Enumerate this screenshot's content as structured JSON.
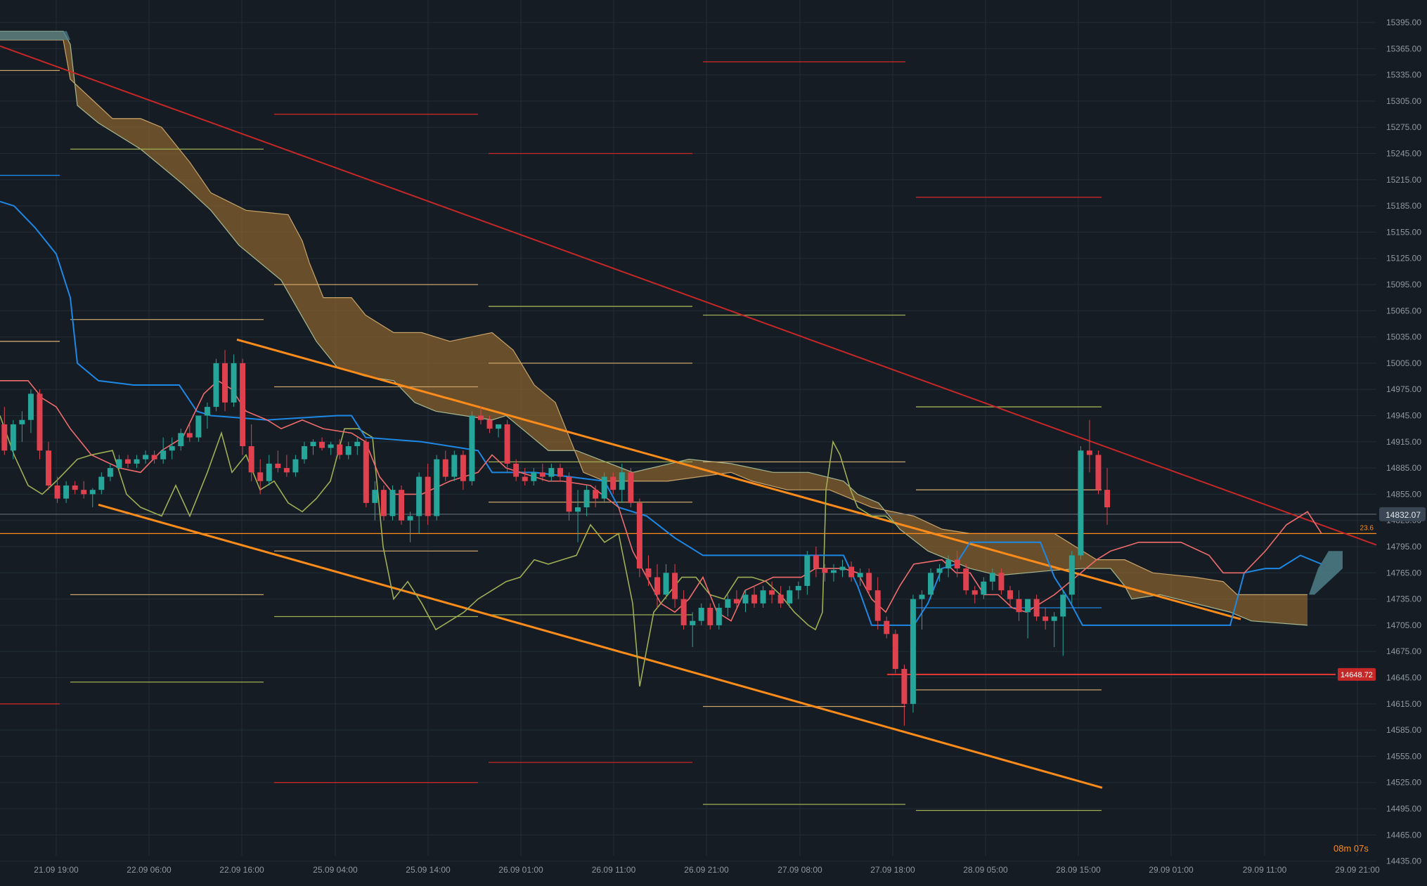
{
  "chart_data": {
    "type": "candlestick",
    "title": "",
    "xlabel": "",
    "ylabel": "",
    "ylim": [
      14422,
      15412
    ],
    "grid": true,
    "legend": "none",
    "y_ticks": [
      "15395.00",
      "15365.00",
      "15335.00",
      "15305.00",
      "15275.00",
      "15245.00",
      "15215.00",
      "15185.00",
      "15155.00",
      "15125.00",
      "15095.00",
      "15065.00",
      "15035.00",
      "15005.00",
      "14975.00",
      "14945.00",
      "14915.00",
      "14885.00",
      "14855.00",
      "14825.00",
      "14795.00",
      "14765.00",
      "14735.00",
      "14705.00",
      "14675.00",
      "14645.00",
      "14615.00",
      "14585.00",
      "14555.00",
      "14525.00",
      "14495.00",
      "14465.00",
      "14435.00"
    ],
    "x_ticks": [
      "21.09 19:00",
      "22.09 06:00",
      "22.09 16:00",
      "25.09 04:00",
      "25.09 14:00",
      "26.09 01:00",
      "26.09 11:00",
      "26.09 21:00",
      "27.09 08:00",
      "27.09 18:00",
      "28.09 05:00",
      "28.09 15:00",
      "29.09 01:00",
      "29.09 11:00",
      "29.09 21:00"
    ],
    "price_labels": {
      "current": "14832.07",
      "support": "14648.72",
      "fib": "23.6",
      "timer": "08m 07s"
    },
    "colors": {
      "background": "#151c24",
      "grid": "#222c36",
      "bull": "#26a69a",
      "bear": "#e0414f",
      "kijun": "#1e88e5",
      "tenkan": "#ef6c6c",
      "chikou": "#9fae55",
      "cloud_bear": "#9c6d30",
      "cloud_bull": "#4e7f8a",
      "trendline": "#ff8c1a",
      "resistance_line": "#c62828",
      "support_label": "#c62828",
      "current_label": "#3a4654",
      "timer": "#ff8c1a"
    },
    "candles": [
      {
        "t": 0.5,
        "o": 14935,
        "h": 14955,
        "l": 14900,
        "c": 14905
      },
      {
        "t": 1.5,
        "o": 14905,
        "h": 14940,
        "l": 14895,
        "c": 14935
      },
      {
        "t": 2.5,
        "o": 14935,
        "h": 14950,
        "l": 14915,
        "c": 14940
      },
      {
        "t": 3.5,
        "o": 14940,
        "h": 14975,
        "l": 14925,
        "c": 14970
      },
      {
        "t": 4.5,
        "o": 14970,
        "h": 14975,
        "l": 14895,
        "c": 14905
      },
      {
        "t": 5.5,
        "o": 14905,
        "h": 14915,
        "l": 14860,
        "c": 14865
      },
      {
        "t": 6.5,
        "o": 14865,
        "h": 14875,
        "l": 14845,
        "c": 14850
      },
      {
        "t": 7.5,
        "o": 14850,
        "h": 14870,
        "l": 14845,
        "c": 14865
      },
      {
        "t": 8.5,
        "o": 14865,
        "h": 14870,
        "l": 14855,
        "c": 14860
      },
      {
        "t": 9.5,
        "o": 14860,
        "h": 14870,
        "l": 14850,
        "c": 14855
      },
      {
        "t": 10.5,
        "o": 14855,
        "h": 14862,
        "l": 14840,
        "c": 14860
      },
      {
        "t": 11.5,
        "o": 14860,
        "h": 14880,
        "l": 14855,
        "c": 14875
      },
      {
        "t": 12.5,
        "o": 14875,
        "h": 14890,
        "l": 14870,
        "c": 14885
      },
      {
        "t": 13.5,
        "o": 14885,
        "h": 14900,
        "l": 14880,
        "c": 14895
      },
      {
        "t": 14.5,
        "o": 14895,
        "h": 14900,
        "l": 14885,
        "c": 14890
      },
      {
        "t": 15.5,
        "o": 14890,
        "h": 14900,
        "l": 14885,
        "c": 14895
      },
      {
        "t": 16.5,
        "o": 14895,
        "h": 14905,
        "l": 14890,
        "c": 14900
      },
      {
        "t": 17.5,
        "o": 14900,
        "h": 14905,
        "l": 14890,
        "c": 14895
      },
      {
        "t": 18.5,
        "o": 14895,
        "h": 14920,
        "l": 14890,
        "c": 14905
      },
      {
        "t": 19.5,
        "o": 14905,
        "h": 14920,
        "l": 14895,
        "c": 14910
      },
      {
        "t": 20.5,
        "o": 14910,
        "h": 14930,
        "l": 14905,
        "c": 14925
      },
      {
        "t": 21.5,
        "o": 14925,
        "h": 14935,
        "l": 14915,
        "c": 14920
      },
      {
        "t": 22.5,
        "o": 14920,
        "h": 14945,
        "l": 14915,
        "c": 14945
      },
      {
        "t": 23.5,
        "o": 14945,
        "h": 14960,
        "l": 14930,
        "c": 14955
      },
      {
        "t": 24.5,
        "o": 14955,
        "h": 15010,
        "l": 14950,
        "c": 15005
      },
      {
        "t": 25.5,
        "o": 15005,
        "h": 15020,
        "l": 14950,
        "c": 14960
      },
      {
        "t": 26.5,
        "o": 14960,
        "h": 15015,
        "l": 14955,
        "c": 15005
      },
      {
        "t": 27.5,
        "o": 15005,
        "h": 15010,
        "l": 14900,
        "c": 14910
      },
      {
        "t": 28.5,
        "o": 14910,
        "h": 14935,
        "l": 14870,
        "c": 14880
      },
      {
        "t": 29.5,
        "o": 14880,
        "h": 14895,
        "l": 14855,
        "c": 14870
      },
      {
        "t": 30.5,
        "o": 14870,
        "h": 14900,
        "l": 14865,
        "c": 14890
      },
      {
        "t": 31.5,
        "o": 14890,
        "h": 14905,
        "l": 14880,
        "c": 14885
      },
      {
        "t": 32.5,
        "o": 14885,
        "h": 14900,
        "l": 14875,
        "c": 14880
      },
      {
        "t": 33.5,
        "o": 14880,
        "h": 14900,
        "l": 14875,
        "c": 14895
      },
      {
        "t": 34.5,
        "o": 14895,
        "h": 14915,
        "l": 14890,
        "c": 14910
      },
      {
        "t": 35.5,
        "o": 14910,
        "h": 14918,
        "l": 14900,
        "c": 14915
      },
      {
        "t": 36.5,
        "o": 14915,
        "h": 14920,
        "l": 14905,
        "c": 14908
      },
      {
        "t": 37.5,
        "o": 14908,
        "h": 14915,
        "l": 14900,
        "c": 14912
      },
      {
        "t": 38.5,
        "o": 14912,
        "h": 14918,
        "l": 14895,
        "c": 14900
      },
      {
        "t": 39.5,
        "o": 14900,
        "h": 14915,
        "l": 14895,
        "c": 14910
      },
      {
        "t": 40.5,
        "o": 14910,
        "h": 14920,
        "l": 14900,
        "c": 14915
      },
      {
        "t": 41.5,
        "o": 14915,
        "h": 14918,
        "l": 14840,
        "c": 14845
      },
      {
        "t": 42.5,
        "o": 14845,
        "h": 14870,
        "l": 14825,
        "c": 14860
      },
      {
        "t": 43.5,
        "o": 14860,
        "h": 14865,
        "l": 14825,
        "c": 14830
      },
      {
        "t": 44.5,
        "o": 14830,
        "h": 14865,
        "l": 14825,
        "c": 14860
      },
      {
        "t": 45.5,
        "o": 14860,
        "h": 14865,
        "l": 14820,
        "c": 14825
      },
      {
        "t": 46.5,
        "o": 14825,
        "h": 14835,
        "l": 14800,
        "c": 14830
      },
      {
        "t": 47.5,
        "o": 14830,
        "h": 14880,
        "l": 14810,
        "c": 14875
      },
      {
        "t": 48.5,
        "o": 14875,
        "h": 14890,
        "l": 14820,
        "c": 14830
      },
      {
        "t": 49.5,
        "o": 14830,
        "h": 14900,
        "l": 14825,
        "c": 14895
      },
      {
        "t": 50.5,
        "o": 14895,
        "h": 14905,
        "l": 14870,
        "c": 14875
      },
      {
        "t": 51.5,
        "o": 14875,
        "h": 14905,
        "l": 14870,
        "c": 14900
      },
      {
        "t": 52.5,
        "o": 14900,
        "h": 14905,
        "l": 14860,
        "c": 14870
      },
      {
        "t": 53.5,
        "o": 14870,
        "h": 14950,
        "l": 14865,
        "c": 14945
      },
      {
        "t": 54.5,
        "o": 14945,
        "h": 14955,
        "l": 14935,
        "c": 14940
      },
      {
        "t": 55.5,
        "o": 14940,
        "h": 14945,
        "l": 14925,
        "c": 14930
      },
      {
        "t": 56.5,
        "o": 14930,
        "h": 14935,
        "l": 14920,
        "c": 14935
      },
      {
        "t": 57.5,
        "o": 14935,
        "h": 14940,
        "l": 14880,
        "c": 14890
      },
      {
        "t": 58.5,
        "o": 14890,
        "h": 14895,
        "l": 14870,
        "c": 14875
      },
      {
        "t": 59.5,
        "o": 14875,
        "h": 14885,
        "l": 14865,
        "c": 14870
      },
      {
        "t": 60.5,
        "o": 14870,
        "h": 14885,
        "l": 14865,
        "c": 14880
      },
      {
        "t": 61.5,
        "o": 14880,
        "h": 14890,
        "l": 14870,
        "c": 14875
      },
      {
        "t": 62.5,
        "o": 14875,
        "h": 14890,
        "l": 14870,
        "c": 14885
      },
      {
        "t": 63.5,
        "o": 14885,
        "h": 14890,
        "l": 14870,
        "c": 14875
      },
      {
        "t": 64.5,
        "o": 14875,
        "h": 14880,
        "l": 14825,
        "c": 14835
      },
      {
        "t": 65.5,
        "o": 14835,
        "h": 14860,
        "l": 14800,
        "c": 14840
      },
      {
        "t": 66.5,
        "o": 14840,
        "h": 14865,
        "l": 14830,
        "c": 14860
      },
      {
        "t": 67.5,
        "o": 14860,
        "h": 14865,
        "l": 14840,
        "c": 14850
      },
      {
        "t": 68.5,
        "o": 14850,
        "h": 14880,
        "l": 14845,
        "c": 14875
      },
      {
        "t": 69.5,
        "o": 14875,
        "h": 14880,
        "l": 14855,
        "c": 14860
      },
      {
        "t": 70.5,
        "o": 14860,
        "h": 14890,
        "l": 14845,
        "c": 14880
      },
      {
        "t": 71.5,
        "o": 14880,
        "h": 14885,
        "l": 14840,
        "c": 14845
      },
      {
        "t": 72.5,
        "o": 14845,
        "h": 14850,
        "l": 14760,
        "c": 14770
      },
      {
        "t": 73.5,
        "o": 14770,
        "h": 14785,
        "l": 14750,
        "c": 14760
      },
      {
        "t": 74.5,
        "o": 14760,
        "h": 14775,
        "l": 14725,
        "c": 14740
      },
      {
        "t": 75.5,
        "o": 14740,
        "h": 14775,
        "l": 14735,
        "c": 14765
      },
      {
        "t": 76.5,
        "o": 14765,
        "h": 14775,
        "l": 14725,
        "c": 14735
      },
      {
        "t": 77.5,
        "o": 14735,
        "h": 14745,
        "l": 14700,
        "c": 14705
      },
      {
        "t": 78.5,
        "o": 14705,
        "h": 14720,
        "l": 14680,
        "c": 14710
      },
      {
        "t": 79.5,
        "o": 14710,
        "h": 14730,
        "l": 14705,
        "c": 14725
      },
      {
        "t": 80.5,
        "o": 14725,
        "h": 14730,
        "l": 14700,
        "c": 14705
      },
      {
        "t": 81.5,
        "o": 14705,
        "h": 14730,
        "l": 14700,
        "c": 14725
      },
      {
        "t": 82.5,
        "o": 14725,
        "h": 14740,
        "l": 14715,
        "c": 14735
      },
      {
        "t": 83.5,
        "o": 14735,
        "h": 14745,
        "l": 14725,
        "c": 14730
      },
      {
        "t": 84.5,
        "o": 14730,
        "h": 14745,
        "l": 14720,
        "c": 14740
      },
      {
        "t": 85.5,
        "o": 14740,
        "h": 14750,
        "l": 14725,
        "c": 14730
      },
      {
        "t": 86.5,
        "o": 14730,
        "h": 14750,
        "l": 14725,
        "c": 14745
      },
      {
        "t": 87.5,
        "o": 14745,
        "h": 14755,
        "l": 14730,
        "c": 14740
      },
      {
        "t": 88.5,
        "o": 14740,
        "h": 14750,
        "l": 14725,
        "c": 14730
      },
      {
        "t": 89.5,
        "o": 14730,
        "h": 14750,
        "l": 14725,
        "c": 14745
      },
      {
        "t": 90.5,
        "o": 14745,
        "h": 14755,
        "l": 14735,
        "c": 14750
      },
      {
        "t": 91.5,
        "o": 14750,
        "h": 14790,
        "l": 14740,
        "c": 14785
      },
      {
        "t": 92.5,
        "o": 14785,
        "h": 14795,
        "l": 14760,
        "c": 14770
      },
      {
        "t": 93.5,
        "o": 14770,
        "h": 14775,
        "l": 14755,
        "c": 14765
      },
      {
        "t": 94.5,
        "o": 14765,
        "h": 14775,
        "l": 14755,
        "c": 14768
      },
      {
        "t": 95.5,
        "o": 14768,
        "h": 14780,
        "l": 14760,
        "c": 14772
      },
      {
        "t": 96.5,
        "o": 14772,
        "h": 14778,
        "l": 14755,
        "c": 14760
      },
      {
        "t": 97.5,
        "o": 14760,
        "h": 14770,
        "l": 14750,
        "c": 14765
      },
      {
        "t": 98.5,
        "o": 14765,
        "h": 14770,
        "l": 14740,
        "c": 14745
      },
      {
        "t": 99.5,
        "o": 14745,
        "h": 14760,
        "l": 14700,
        "c": 14710
      },
      {
        "t": 100.5,
        "o": 14710,
        "h": 14715,
        "l": 14690,
        "c": 14695
      },
      {
        "t": 101.5,
        "o": 14695,
        "h": 14700,
        "l": 14650,
        "c": 14655
      },
      {
        "t": 102.5,
        "o": 14655,
        "h": 14660,
        "l": 14590,
        "c": 14615
      },
      {
        "t": 103.5,
        "o": 14615,
        "h": 14740,
        "l": 14605,
        "c": 14735
      },
      {
        "t": 104.5,
        "o": 14735,
        "h": 14745,
        "l": 14700,
        "c": 14740
      },
      {
        "t": 105.5,
        "o": 14740,
        "h": 14770,
        "l": 14735,
        "c": 14765
      },
      {
        "t": 106.5,
        "o": 14765,
        "h": 14775,
        "l": 14755,
        "c": 14770
      },
      {
        "t": 107.5,
        "o": 14770,
        "h": 14785,
        "l": 14760,
        "c": 14780
      },
      {
        "t": 108.5,
        "o": 14780,
        "h": 14790,
        "l": 14760,
        "c": 14770
      },
      {
        "t": 109.5,
        "o": 14770,
        "h": 14775,
        "l": 14740,
        "c": 14745
      },
      {
        "t": 110.5,
        "o": 14745,
        "h": 14750,
        "l": 14730,
        "c": 14740
      },
      {
        "t": 111.5,
        "o": 14740,
        "h": 14760,
        "l": 14735,
        "c": 14755
      },
      {
        "t": 112.5,
        "o": 14755,
        "h": 14770,
        "l": 14745,
        "c": 14765
      },
      {
        "t": 113.5,
        "o": 14765,
        "h": 14770,
        "l": 14740,
        "c": 14745
      },
      {
        "t": 114.5,
        "o": 14745,
        "h": 14750,
        "l": 14725,
        "c": 14735
      },
      {
        "t": 115.5,
        "o": 14735,
        "h": 14745,
        "l": 14710,
        "c": 14720
      },
      {
        "t": 116.5,
        "o": 14720,
        "h": 14730,
        "l": 14690,
        "c": 14735
      },
      {
        "t": 117.5,
        "o": 14735,
        "h": 14740,
        "l": 14710,
        "c": 14715
      },
      {
        "t": 118.5,
        "o": 14715,
        "h": 14725,
        "l": 14700,
        "c": 14710
      },
      {
        "t": 119.5,
        "o": 14710,
        "h": 14720,
        "l": 14680,
        "c": 14715
      },
      {
        "t": 120.5,
        "o": 14715,
        "h": 14745,
        "l": 14670,
        "c": 14740
      },
      {
        "t": 121.5,
        "o": 14740,
        "h": 14790,
        "l": 14730,
        "c": 14785
      },
      {
        "t": 122.5,
        "o": 14785,
        "h": 14910,
        "l": 14780,
        "c": 14905
      },
      {
        "t": 123.5,
        "o": 14905,
        "h": 14940,
        "l": 14880,
        "c": 14900
      },
      {
        "t": 124.5,
        "o": 14900,
        "h": 14905,
        "l": 14855,
        "c": 14860
      },
      {
        "t": 125.5,
        "o": 14860,
        "h": 14885,
        "l": 14820,
        "c": 14840
      }
    ]
  }
}
